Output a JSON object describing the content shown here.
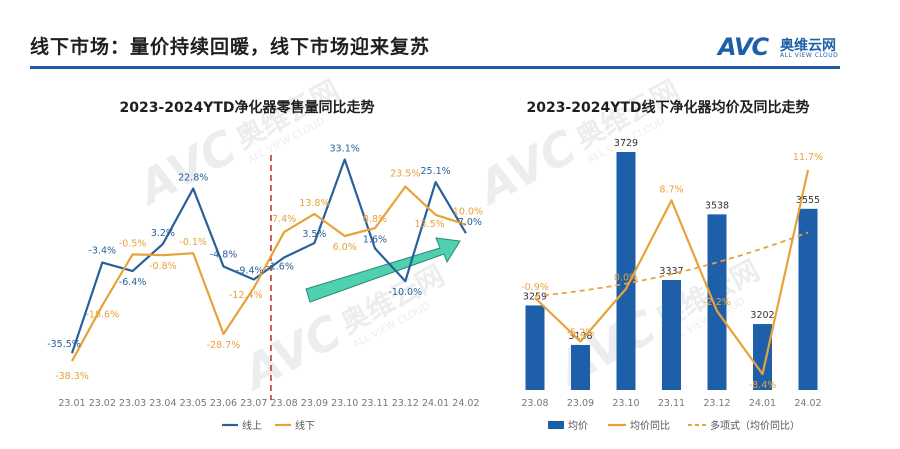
{
  "header": {
    "title": "线下市场：量价持续回暖，线下市场迎来复苏",
    "logo_mark": "AVC",
    "logo_cn": "奥维云网",
    "logo_en": "ALL VIEW CLOUD",
    "watermark": "AVC",
    "watermark_cn": "奥维云网",
    "watermark_en": "ALL VIEW CLOUD"
  },
  "colors": {
    "online": "#2a6099",
    "offline": "#e8a23a",
    "bar": "#1d5fa8",
    "divider": "#c0392b",
    "arrow": "#4fd0b0"
  },
  "chart_data": [
    {
      "type": "line",
      "title": "2023-2024YTD净化器零售量同比走势",
      "categories": [
        "23.01",
        "23.02",
        "23.03",
        "23.04",
        "23.05",
        "23.06",
        "23.07",
        "23.08",
        "23.09",
        "23.10",
        "23.11",
        "23.12",
        "24.01",
        "24.02"
      ],
      "series": [
        {
          "name": "线上",
          "values": [
            -35.5,
            -3.4,
            -6.4,
            3.2,
            22.8,
            -4.8,
            -9.4,
            -1.6,
            3.5,
            33.1,
            1.6,
            -10.0,
            25.1,
            7.0
          ],
          "labels": [
            "-35.5%",
            "-3.4%",
            "-6.4%",
            "3.2%",
            "22.8%",
            "-4.8%",
            "-9.4%",
            "-1.6%",
            "3.5%",
            "33.1%",
            "1.6%",
            "-10.0%",
            "25.1%",
            "7.0%"
          ]
        },
        {
          "name": "线下",
          "values": [
            -38.3,
            -18.6,
            -0.5,
            -0.8,
            -0.1,
            -28.7,
            -12.4,
            7.4,
            13.8,
            6.0,
            8.8,
            23.5,
            13.5,
            10.0
          ],
          "labels": [
            "-38.3%",
            "-18.6%",
            "-0.5%",
            "-0.8%",
            "-0.1%",
            "-28.7%",
            "-12.4%",
            "7.4%",
            "13.8%",
            "6.0%",
            "8.8%",
            "23.5%",
            "13.5%",
            "10.0%"
          ]
        }
      ],
      "ylim": [
        -45,
        40
      ],
      "grid": false,
      "legend": "bottom"
    },
    {
      "type": "bar",
      "title": "2023-2024YTD线下净化器均价及同比走势",
      "categories": [
        "23.08",
        "23.09",
        "23.10",
        "23.11",
        "23.12",
        "24.01",
        "24.02"
      ],
      "bars": {
        "name": "均价",
        "values": [
          3259,
          3138,
          3729,
          3337,
          3538,
          3202,
          3555
        ]
      },
      "line": {
        "name": "均价同比",
        "values": [
          -0.9,
          -5.2,
          0.0,
          8.7,
          -2.2,
          -8.4,
          11.7
        ],
        "labels": [
          "-0.9%",
          "-5.2%",
          "0.0%",
          "8.7%",
          "-2.2%",
          "-8.4%",
          "11.7%"
        ]
      },
      "trend": {
        "name": "多项式（均价同比）"
      },
      "grid": false,
      "legend": "bottom"
    }
  ]
}
